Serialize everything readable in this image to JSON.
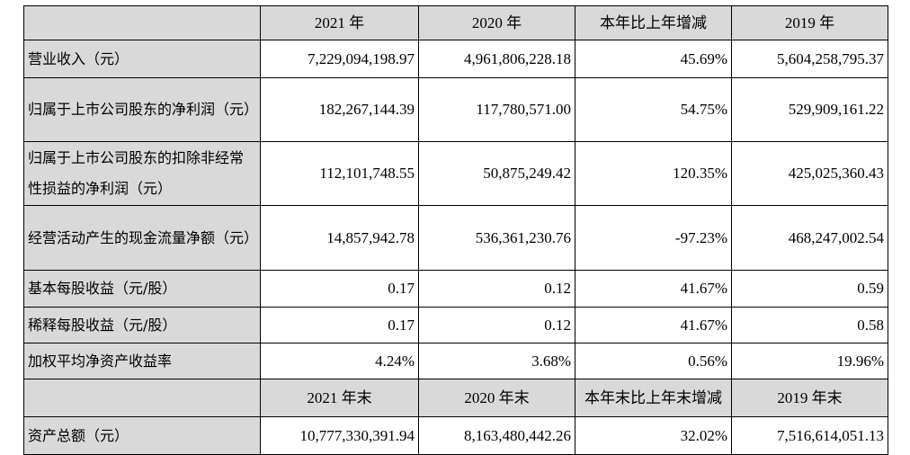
{
  "header1": [
    "",
    "2021 年",
    "2020 年",
    "本年比上年增减",
    "2019 年"
  ],
  "header2": [
    "",
    "2021 年末",
    "2020 年末",
    "本年末比上年末增减",
    "2019 年末"
  ],
  "rows": [
    {
      "label": "营业收入（元）",
      "v2021": "7,229,094,198.97",
      "v2020": "4,961,806,228.18",
      "change": "45.69%",
      "v2019": "5,604,258,795.37"
    },
    {
      "label": "归属于上市公司股东的净利润（元）",
      "v2021": "182,267,144.39",
      "v2020": "117,780,571.00",
      "change": "54.75%",
      "v2019": "529,909,161.22"
    },
    {
      "label": "归属于上市公司股东的扣除非经常性损益的净利润（元）",
      "v2021": "112,101,748.55",
      "v2020": "50,875,249.42",
      "change": "120.35%",
      "v2019": "425,025,360.43"
    },
    {
      "label": "经营活动产生的现金流量净额（元）",
      "v2021": "14,857,942.78",
      "v2020": "536,361,230.76",
      "change": "-97.23%",
      "v2019": "468,247,002.54"
    },
    {
      "label": "基本每股收益（元/股）",
      "v2021": "0.17",
      "v2020": "0.12",
      "change": "41.67%",
      "v2019": "0.59"
    },
    {
      "label": "稀释每股收益（元/股）",
      "v2021": "0.17",
      "v2020": "0.12",
      "change": "41.67%",
      "v2019": "0.58"
    },
    {
      "label": "加权平均净资产收益率",
      "v2021": "4.24%",
      "v2020": "3.68%",
      "change": "0.56%",
      "v2019": "19.96%"
    }
  ],
  "rows2": [
    {
      "label": "资产总额（元）",
      "v2021": "10,777,330,391.94",
      "v2020": "8,163,480,442.26",
      "change": "32.02%",
      "v2019": "7,516,614,051.13"
    }
  ]
}
